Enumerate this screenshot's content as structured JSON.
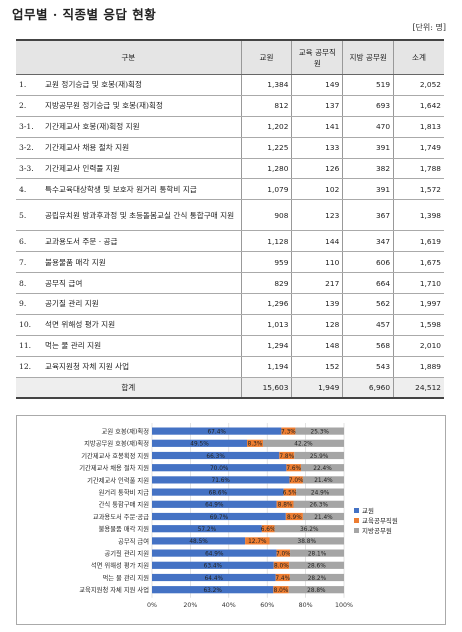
{
  "title": "업무별 · 직종별 응답 현황",
  "unit": "[단위: 명]",
  "table": {
    "headers": [
      "구분",
      "교원",
      "교육 공무직원",
      "지방 공무원",
      "소계"
    ],
    "rows": [
      {
        "no": "1.",
        "label": "교원 정기승급 및 호봉(재)획정",
        "values": [
          "1,384",
          "149",
          "519",
          "2,052"
        ]
      },
      {
        "no": "2.",
        "label": "지방공무원 정기승급 및 호봉(재)획정",
        "values": [
          "812",
          "137",
          "693",
          "1,642"
        ]
      },
      {
        "no": "3-1.",
        "label": "기간제교사 호봉(재)획정 지원",
        "values": [
          "1,202",
          "141",
          "470",
          "1,813"
        ]
      },
      {
        "no": "3-2.",
        "label": "기간제교사 채용 절차 지원",
        "values": [
          "1,225",
          "133",
          "391",
          "1,749"
        ]
      },
      {
        "no": "3-3.",
        "label": "기간제교사 인력풀 지원",
        "values": [
          "1,280",
          "126",
          "382",
          "1,788"
        ]
      },
      {
        "no": "4.",
        "label": "특수교육대상학생 및 보호자 원거리 통학비 지급",
        "values": [
          "1,079",
          "102",
          "391",
          "1,572"
        ]
      },
      {
        "no": "5.",
        "label": "공립유치원 방과후과정 및 초등돌봄교실 간식 통합구매 지원",
        "values": [
          "908",
          "123",
          "367",
          "1,398"
        ]
      },
      {
        "no": "6.",
        "label": "교과용도서 주문 · 공급",
        "values": [
          "1,128",
          "144",
          "347",
          "1,619"
        ]
      },
      {
        "no": "7.",
        "label": "불용물품 매각 지원",
        "values": [
          "959",
          "110",
          "606",
          "1,675"
        ]
      },
      {
        "no": "8.",
        "label": "공무직 급여",
        "values": [
          "829",
          "217",
          "664",
          "1,710"
        ]
      },
      {
        "no": "9.",
        "label": "공기질 관리 지원",
        "values": [
          "1,296",
          "139",
          "562",
          "1,997"
        ]
      },
      {
        "no": "10.",
        "label": "석면 위해성 평가 지원",
        "values": [
          "1,013",
          "128",
          "457",
          "1,598"
        ]
      },
      {
        "no": "11.",
        "label": "먹는 물 관리 지원",
        "values": [
          "1,294",
          "148",
          "568",
          "2,010"
        ]
      },
      {
        "no": "12.",
        "label": "교육지원청 자체 지원 사업",
        "values": [
          "1,194",
          "152",
          "543",
          "1,889"
        ]
      }
    ],
    "total": {
      "label": "합계",
      "values": [
        "15,603",
        "1,949",
        "6,960",
        "24,512"
      ]
    }
  },
  "chart_data": {
    "type": "bar",
    "orientation": "horizontal",
    "stacked": true,
    "categories": [
      "교원 호봉(재)획정",
      "지방공무원 호봉(재)획정",
      "기간제교사 호봉획정 지원",
      "기간제교사 채용 절차 지원",
      "기간제교사 인력풀 지원",
      "원거리 통학비 지급",
      "간식 통합구매 지원",
      "교과용도서 주문·공급",
      "불용물품 매각 지원",
      "공무직 급여",
      "공기질 관리 지원",
      "석면 위해성 평가 지원",
      "먹는 물 관리 지원",
      "교육지원청 자체 지원 사업"
    ],
    "series": [
      {
        "name": "교원",
        "color": "#4472c4",
        "values": [
          67.4,
          49.5,
          66.3,
          70.0,
          71.6,
          68.6,
          64.9,
          69.7,
          57.2,
          48.5,
          64.9,
          63.4,
          64.4,
          63.2
        ],
        "labels": [
          "67.4%",
          "49.5%",
          "66.3%",
          "70.0%",
          "71.6%",
          "68.6%",
          "64.9%",
          "69.7%",
          "57.2%",
          "48.5%",
          "64.9%",
          "63.4%",
          "64.4%",
          "63.2%"
        ]
      },
      {
        "name": "교육공무직원",
        "color": "#ed7d31",
        "values": [
          7.3,
          8.3,
          7.8,
          7.6,
          7.0,
          6.5,
          8.8,
          8.9,
          6.6,
          12.7,
          7.0,
          8.0,
          7.4,
          8.0
        ],
        "labels": [
          "7.3%",
          "8.3%",
          "7.8%",
          "7.6%",
          "7.0%",
          "6.5%",
          "8.8%",
          "8.9%",
          "6.6%",
          "12.7%",
          "7.0%",
          "8.0%",
          "7.4%",
          "8.0%"
        ]
      },
      {
        "name": "지방공무원",
        "color": "#a5a5a5",
        "values": [
          25.3,
          42.2,
          25.9,
          22.4,
          21.4,
          24.9,
          26.3,
          21.4,
          36.2,
          38.8,
          28.1,
          28.6,
          28.2,
          28.8
        ],
        "labels": [
          "25.3%",
          "42.2%",
          "25.9%",
          "22.4%",
          "21.4%",
          "24.9%",
          "26.3%",
          "21.4%",
          "36.2%",
          "38.8%",
          "28.1%",
          "28.6%",
          "28.2%",
          "28.8%"
        ]
      }
    ],
    "xticks": [
      "0%",
      "20%",
      "40%",
      "60%",
      "80%",
      "100%"
    ],
    "xlim": [
      0,
      100
    ],
    "grid": true,
    "legend_position": "right"
  }
}
